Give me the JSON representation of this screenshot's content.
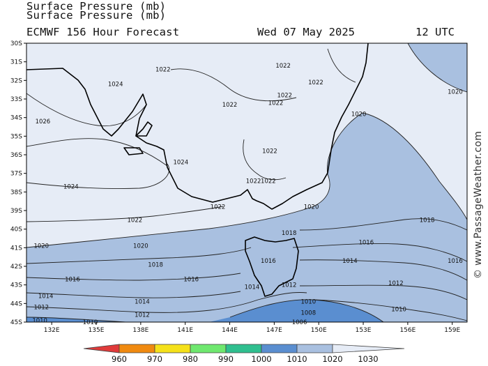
{
  "header": {
    "title_line1": "Surface Pressure (mb)",
    "title_line2": "ECMWF 156 Hour Forecast",
    "date": "Wed 07 May 2025",
    "time": "12 UTC"
  },
  "axes": {
    "lat_labels": [
      "30S",
      "31S",
      "32S",
      "33S",
      "34S",
      "35S",
      "36S",
      "37S",
      "38S",
      "39S",
      "40S",
      "41S",
      "42S",
      "43S",
      "44S",
      "45S"
    ],
    "lon_labels": [
      "132E",
      "135E",
      "138E",
      "141E",
      "144E",
      "147E",
      "150E",
      "153E",
      "156E",
      "159E"
    ]
  },
  "colorbar": {
    "labels": [
      "960",
      "970",
      "980",
      "990",
      "1000",
      "1010",
      "1020",
      "1030"
    ],
    "colors": [
      "#e03a3a",
      "#f08a10",
      "#f5e11a",
      "#6fe86f",
      "#2fbf8f",
      "#5a8ed0",
      "#a9c0e0",
      "#e6ecf6"
    ]
  },
  "fills": {
    "below_1010": "#5a8ed0",
    "range_1010_1020": "#a9c0e0",
    "above_1020": "#e6ecf6",
    "land_outline": "#000000"
  },
  "contour_labels": [
    {
      "text": "1022",
      "lon": 139.5,
      "lat": -31.4
    },
    {
      "text": "1024",
      "lon": 136.3,
      "lat": -32.2
    },
    {
      "text": "1022",
      "lon": 147.6,
      "lat": -31.2
    },
    {
      "text": "1022",
      "lon": 149.8,
      "lat": -32.1
    },
    {
      "text": "1022",
      "lon": 147.7,
      "lat": -32.8
    },
    {
      "text": "1022",
      "lon": 147.1,
      "lat": -33.2
    },
    {
      "text": "1022",
      "lon": 144.0,
      "lat": -33.3
    },
    {
      "text": "1020",
      "lon": 159.2,
      "lat": -32.6
    },
    {
      "text": "1020",
      "lon": 152.7,
      "lat": -33.8
    },
    {
      "text": "1026",
      "lon": 131.4,
      "lat": -34.2
    },
    {
      "text": "1022",
      "lon": 146.7,
      "lat": -35.8
    },
    {
      "text": "1024",
      "lon": 140.7,
      "lat": -36.4
    },
    {
      "text": "1022",
      "lon": 145.6,
      "lat": -37.4
    },
    {
      "text": "1022",
      "lon": 146.6,
      "lat": -37.4
    },
    {
      "text": "1024",
      "lon": 133.3,
      "lat": -37.7
    },
    {
      "text": "1022",
      "lon": 143.2,
      "lat": -38.8
    },
    {
      "text": "1020",
      "lon": 149.5,
      "lat": -38.8
    },
    {
      "text": "1022",
      "lon": 137.6,
      "lat": -39.5
    },
    {
      "text": "1018",
      "lon": 157.3,
      "lat": -39.5
    },
    {
      "text": "1018",
      "lon": 148.0,
      "lat": -40.2
    },
    {
      "text": "1020",
      "lon": 131.3,
      "lat": -40.9
    },
    {
      "text": "1020",
      "lon": 138.0,
      "lat": -40.9
    },
    {
      "text": "1016",
      "lon": 153.2,
      "lat": -40.7
    },
    {
      "text": "1018",
      "lon": 139.0,
      "lat": -41.9
    },
    {
      "text": "1016",
      "lon": 146.6,
      "lat": -41.7
    },
    {
      "text": "1014",
      "lon": 152.1,
      "lat": -41.7
    },
    {
      "text": "1016",
      "lon": 159.2,
      "lat": -41.7
    },
    {
      "text": "1016",
      "lon": 133.4,
      "lat": -42.7
    },
    {
      "text": "1016",
      "lon": 141.4,
      "lat": -42.7
    },
    {
      "text": "1014",
      "lon": 145.5,
      "lat": -43.1
    },
    {
      "text": "1012",
      "lon": 148.0,
      "lat": -43.0
    },
    {
      "text": "1012",
      "lon": 155.2,
      "lat": -42.9
    },
    {
      "text": "1014",
      "lon": 131.6,
      "lat": -43.6
    },
    {
      "text": "1014",
      "lon": 138.1,
      "lat": -43.9
    },
    {
      "text": "1010",
      "lon": 149.3,
      "lat": -43.9
    },
    {
      "text": "1012",
      "lon": 131.3,
      "lat": -44.2
    },
    {
      "text": "1012",
      "lon": 138.1,
      "lat": -44.6
    },
    {
      "text": "1008",
      "lon": 149.3,
      "lat": -44.5
    },
    {
      "text": "1010",
      "lon": 155.4,
      "lat": -44.3
    },
    {
      "text": "1010",
      "lon": 131.2,
      "lat": -44.9
    },
    {
      "text": "1010",
      "lon": 134.6,
      "lat": -45.0
    },
    {
      "text": "1006",
      "lon": 148.7,
      "lat": -45.0
    }
  ],
  "watermark": "© www.PassageWeather.com"
}
